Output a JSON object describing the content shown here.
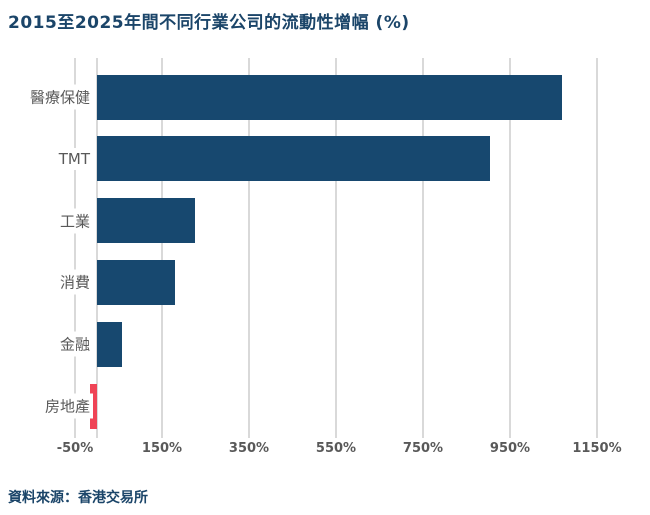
{
  "chart_data": {
    "type": "bar",
    "orientation": "horizontal",
    "title": "2015至2025年間不同行業公司的流動性增幅 (%)",
    "source": "資料來源：香港交易所",
    "categories": [
      "醫療保健",
      "TMT",
      "工業",
      "消費",
      "金融",
      "房地產"
    ],
    "values": [
      1070,
      905,
      225,
      180,
      57,
      -16
    ],
    "unit": "%",
    "x_tick_labels": [
      "-50%",
      "150%",
      "350%",
      "550%",
      "750%",
      "950%",
      "1150%"
    ],
    "x_tick_values": [
      -50,
      150,
      350,
      550,
      750,
      950,
      1150
    ],
    "xlim": [
      -50,
      1200
    ],
    "grid": "vertical",
    "legend": "none",
    "colors": {
      "positive_bar": "#17486f",
      "negative_bar": "#ef4456",
      "gridline": "#d9d9d9",
      "title_text": "#1b4569",
      "source_text": "#1b4569",
      "category_text": "#595959",
      "tick_text": "#595959",
      "background": "#ffffff"
    }
  }
}
